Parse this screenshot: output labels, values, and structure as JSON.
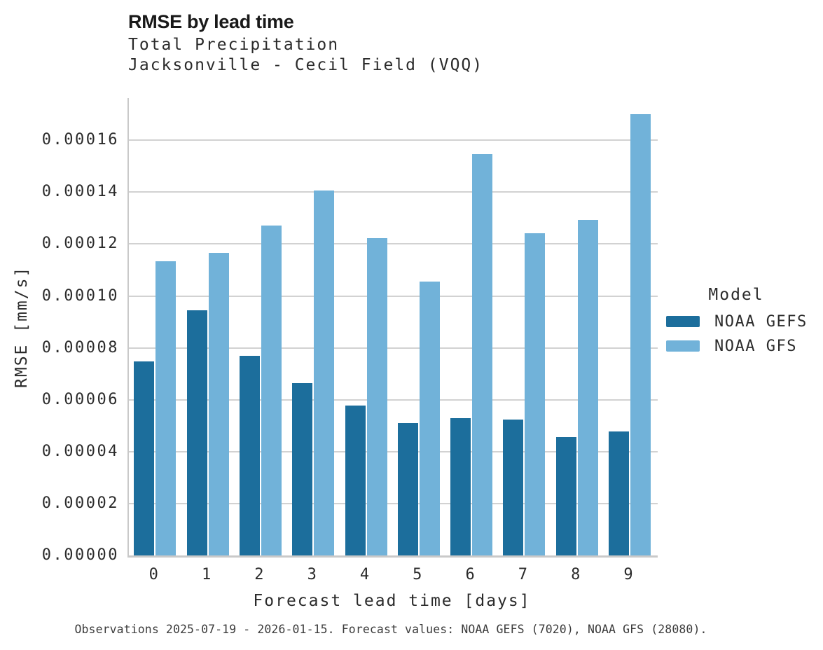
{
  "header": {
    "title": "RMSE by lead time",
    "subtitle_line1": "Total Precipitation",
    "subtitle_line2": "Jacksonville - Cecil Field (VQQ)"
  },
  "chart_data": {
    "type": "bar",
    "title": "RMSE by lead time",
    "subtitle": [
      "Total Precipitation",
      "Jacksonville - Cecil Field (VQQ)"
    ],
    "categories": [
      "0",
      "1",
      "2",
      "3",
      "4",
      "5",
      "6",
      "7",
      "8",
      "9"
    ],
    "series": [
      {
        "name": "NOAA GEFS",
        "color": "#1c6e9c",
        "values": [
          7.48e-05,
          9.45e-05,
          7.69e-05,
          6.64e-05,
          5.78e-05,
          5.1e-05,
          5.28e-05,
          5.24e-05,
          4.57e-05,
          4.79e-05
        ]
      },
      {
        "name": "NOAA GFS",
        "color": "#71b2d9",
        "values": [
          0.0001135,
          0.0001165,
          0.0001272,
          0.0001406,
          0.0001222,
          0.0001055,
          0.0001547,
          0.0001242,
          0.0001292,
          0.0001701
        ]
      }
    ],
    "xlabel": "Forecast lead time [days]",
    "ylabel": "RMSE [mm/s]",
    "ylim": [
      0,
      0.000176
    ],
    "yticks": [
      0.0,
      2e-05,
      4e-05,
      6e-05,
      8e-05,
      0.0001,
      0.00012,
      0.00014,
      0.00016
    ],
    "ytick_labels": [
      "0.00000",
      "0.00002",
      "0.00004",
      "0.00006",
      "0.00008",
      "0.00010",
      "0.00012",
      "0.00014",
      "0.00016"
    ],
    "legend_title": "Model",
    "legend_position": "right",
    "grid": true,
    "grid_color": "#d2d2d2",
    "axis_color": "#c9c9c9"
  },
  "caption": "Observations 2025-07-19 - 2026-01-15. Forecast values: NOAA GEFS (7020), NOAA GFS (28080)."
}
